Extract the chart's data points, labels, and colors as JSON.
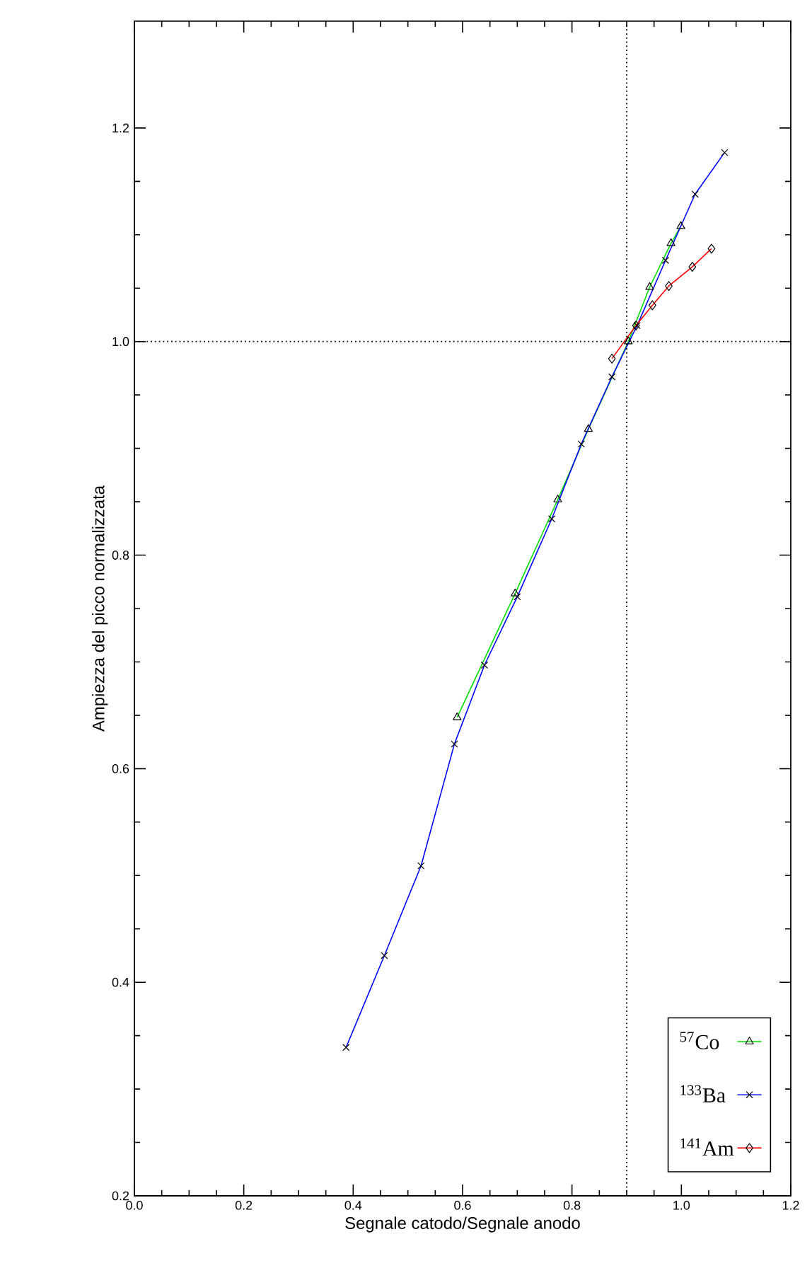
{
  "chart_data": {
    "type": "line",
    "xlabel": "Segnale catodo/Segnale anodo",
    "ylabel": "Ampiezza del picco normalizzata",
    "xlim": [
      0.0,
      1.2
    ],
    "ylim": [
      0.2,
      1.3
    ],
    "xticks": [
      {
        "value": 0,
        "label": "0.0"
      },
      0.2,
      0.4,
      0.6,
      0.8,
      {
        "value": 1,
        "label": "1.0"
      },
      1.2
    ],
    "yticks": [
      0.2,
      0.4,
      0.6,
      0.8,
      {
        "value": 1,
        "label": "1.0"
      },
      1.2
    ],
    "grid": false,
    "legend": "bottom right",
    "line_style": "solid",
    "series": [
      {
        "name": "$^{57}$Co",
        "color": "#00e000",
        "marker": "triangle",
        "x": [
          0.59,
          0.696,
          0.774,
          0.83,
          0.903,
          0.942,
          0.981,
          0.999
        ],
        "values": [
          0.648,
          0.764,
          0.852,
          0.918,
          1.0,
          1.051,
          1.092,
          1.108
        ]
      },
      {
        "name": "$^{133}$Ba",
        "color": "#0000ff",
        "marker": "cross",
        "x": [
          0.387,
          0.457,
          0.524,
          0.585,
          0.64,
          0.7,
          0.763,
          0.817,
          0.873,
          0.919,
          0.971,
          1.025,
          1.079
        ],
        "values": [
          0.339,
          0.425,
          0.509,
          0.623,
          0.697,
          0.761,
          0.834,
          0.904,
          0.967,
          1.015,
          1.076,
          1.138,
          1.177
        ]
      },
      {
        "name": "$^{141}$Am",
        "color": "#ff0000",
        "marker": "diamond",
        "x": [
          0.873,
          0.917,
          0.947,
          0.977,
          1.02,
          1.055
        ],
        "values": [
          0.984,
          1.015,
          1.034,
          1.052,
          1.07,
          1.087
        ]
      }
    ],
    "ref_lines": [
      {
        "axis": "x",
        "value": 0.9,
        "color": "#000000",
        "line_style": "dotted"
      },
      {
        "axis": "y",
        "value": 1.0,
        "color": "#000000",
        "line_style": "dotted"
      }
    ]
  }
}
